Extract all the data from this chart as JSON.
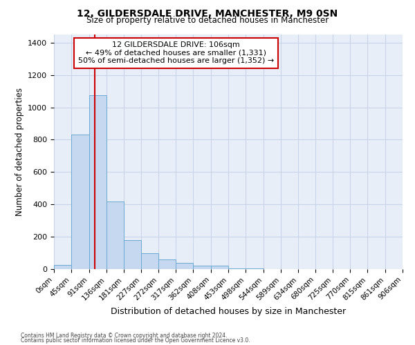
{
  "title": "12, GILDERSDALE DRIVE, MANCHESTER, M9 0SN",
  "subtitle": "Size of property relative to detached houses in Manchester",
  "xlabel": "Distribution of detached houses by size in Manchester",
  "ylabel": "Number of detached properties",
  "bin_edges": [
    0,
    45,
    91,
    136,
    181,
    227,
    272,
    317,
    362,
    408,
    453,
    498,
    544,
    589,
    634,
    680,
    725,
    770,
    815,
    861,
    906
  ],
  "bar_heights": [
    25,
    830,
    1075,
    420,
    180,
    100,
    60,
    40,
    20,
    20,
    5,
    5,
    0,
    0,
    0,
    0,
    0,
    0,
    0,
    0
  ],
  "bar_color": "#c5d8f0",
  "bar_edge_color": "#6aaad4",
  "grid_color": "#c8d4e8",
  "bg_color": "#e8eef8",
  "red_line_x": 106,
  "annotation_lines": [
    "12 GILDERSDALE DRIVE: 106sqm",
    "← 49% of detached houses are smaller (1,331)",
    "50% of semi-detached houses are larger (1,352) →"
  ],
  "annotation_box_color": "#cc0000",
  "ylim": [
    0,
    1450
  ],
  "yticks": [
    0,
    200,
    400,
    600,
    800,
    1000,
    1200,
    1400
  ],
  "footnote1": "Contains HM Land Registry data © Crown copyright and database right 2024.",
  "footnote2": "Contains public sector information licensed under the Open Government Licence v3.0."
}
